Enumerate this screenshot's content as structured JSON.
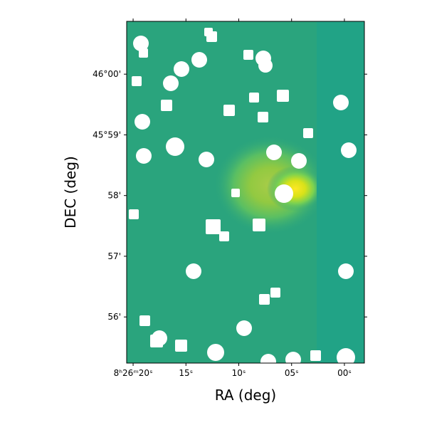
{
  "chart_data": {
    "type": "image",
    "xlabel": "RA (deg)",
    "ylabel": "DEC (deg)",
    "xlim": [
      20.61,
      -1.89
    ],
    "xticks": [
      {
        "value": 20,
        "label": "8ʰ26ᵐ20ˢ"
      },
      {
        "value": 15,
        "label": "15ˢ"
      },
      {
        "value": 10,
        "label": "10ˢ"
      },
      {
        "value": 5,
        "label": "05ˢ"
      },
      {
        "value": 0,
        "label": "00ˢ"
      }
    ],
    "ylim": [
      55.24,
      60.87
    ],
    "yticks": [
      {
        "value": 60,
        "label": "46°00'"
      },
      {
        "value": 59,
        "label": "45°59'"
      },
      {
        "value": 58,
        "label": "58'"
      },
      {
        "value": 57,
        "label": "57'"
      },
      {
        "value": 56,
        "label": "56'"
      }
    ]
  }
}
